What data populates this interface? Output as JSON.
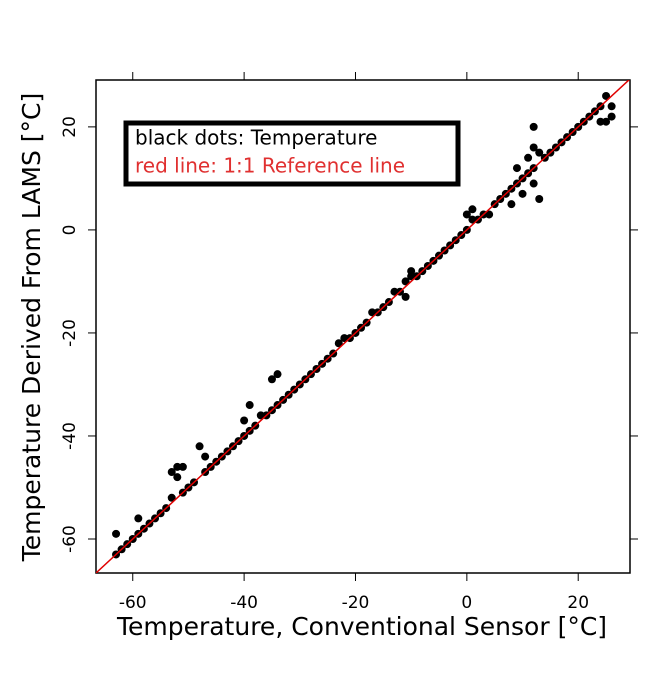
{
  "chart_data": {
    "type": "scatter",
    "xlabel": "Temperature, Conventional Sensor [°C]",
    "ylabel": "Temperature Derived From LAMS [°C]",
    "xlim": [
      -66.6,
      29.3
    ],
    "ylim": [
      -66.6,
      29.1
    ],
    "xticks": [
      -60,
      -40,
      -20,
      0,
      20
    ],
    "yticks": [
      -60,
      -40,
      -20,
      0,
      20
    ],
    "legend": "top-left",
    "series": [
      {
        "name": "black dots: Temperature",
        "color": "#000000",
        "x": [
          -63,
          -63,
          -62,
          -61,
          -60,
          -59,
          -59,
          -58,
          -57,
          -56,
          -55,
          -54,
          -53,
          -52,
          -52,
          -53,
          -51,
          -51,
          -50,
          -49,
          -48,
          -47,
          -47,
          -46,
          -45,
          -44,
          -43,
          -42,
          -41,
          -40,
          -39,
          -38,
          -40,
          -39,
          -37,
          -36,
          -35,
          -34,
          -35,
          -34,
          -33,
          -32,
          -31,
          -30,
          -29,
          -28,
          -27,
          -26,
          -25,
          -24,
          -23,
          -22,
          -21,
          -20,
          -19,
          -18,
          -17,
          -16,
          -15,
          -14,
          -13,
          -12,
          -11,
          -11,
          -10,
          -10,
          -9,
          -8,
          -7,
          -6,
          -5,
          -4,
          -3,
          -2,
          -1,
          0,
          0,
          1,
          1,
          2,
          3,
          4,
          5,
          6,
          7,
          8,
          8,
          9,
          9,
          10,
          10,
          11,
          11,
          12,
          12,
          12,
          12,
          13,
          13,
          14,
          15,
          16,
          17,
          18,
          19,
          20,
          21,
          22,
          23,
          24,
          25,
          25,
          24,
          26,
          26
        ],
        "values": [
          -63,
          -59,
          -62,
          -61,
          -60,
          -59,
          -56,
          -58,
          -57,
          -56,
          -55,
          -54,
          -52,
          -48,
          -46,
          -47,
          -46,
          -51,
          -50,
          -49,
          -42,
          -44,
          -47,
          -46,
          -45,
          -44,
          -43,
          -42,
          -41,
          -40,
          -39,
          -38,
          -37,
          -34,
          -36,
          -36,
          -29,
          -28,
          -35,
          -34,
          -33,
          -32,
          -31,
          -30,
          -29,
          -28,
          -27,
          -26,
          -25,
          -24,
          -22,
          -21,
          -21,
          -20,
          -19,
          -18,
          -16,
          -16,
          -15,
          -14,
          -12,
          -12,
          -13,
          -10,
          -9,
          -8,
          -9,
          -8,
          -7,
          -6,
          -5,
          -4,
          -3,
          -2,
          -1,
          0,
          3,
          2,
          4,
          2,
          3,
          3,
          5,
          6,
          7,
          8,
          5,
          9,
          12,
          10,
          7,
          11,
          14,
          12,
          16,
          20,
          9,
          15,
          6,
          14,
          15,
          16,
          17,
          18,
          19,
          20,
          21,
          22,
          23,
          24,
          26,
          21,
          21,
          24,
          22
        ]
      },
      {
        "name": "red line: 1:1 Reference line",
        "type": "line",
        "color": "#e00000",
        "x": [
          -66.6,
          29.3
        ],
        "values": [
          -66.6,
          29.3
        ]
      }
    ]
  }
}
